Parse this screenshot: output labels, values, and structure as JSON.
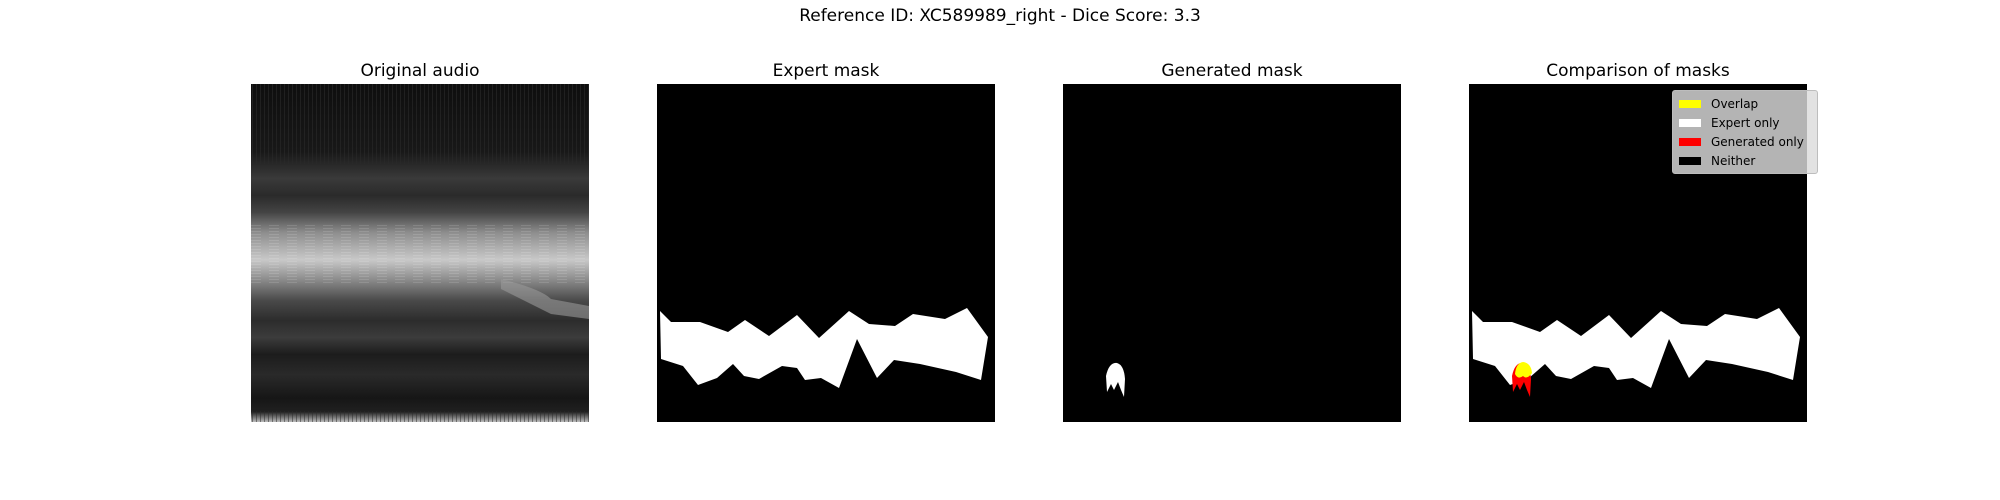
{
  "suptitle": "Reference ID: XC589989_right - Dice Score: 3.3",
  "panels": [
    {
      "title": "Original audio"
    },
    {
      "title": "Expert mask"
    },
    {
      "title": "Generated mask"
    },
    {
      "title": "Comparison of masks"
    }
  ],
  "legend": {
    "items": [
      {
        "label": "Overlap",
        "color": "#ffff00"
      },
      {
        "label": "Expert only",
        "color": "#ffffff"
      },
      {
        "label": "Generated only",
        "color": "#ff0000"
      },
      {
        "label": "Neither",
        "color": "#000000"
      }
    ]
  }
}
